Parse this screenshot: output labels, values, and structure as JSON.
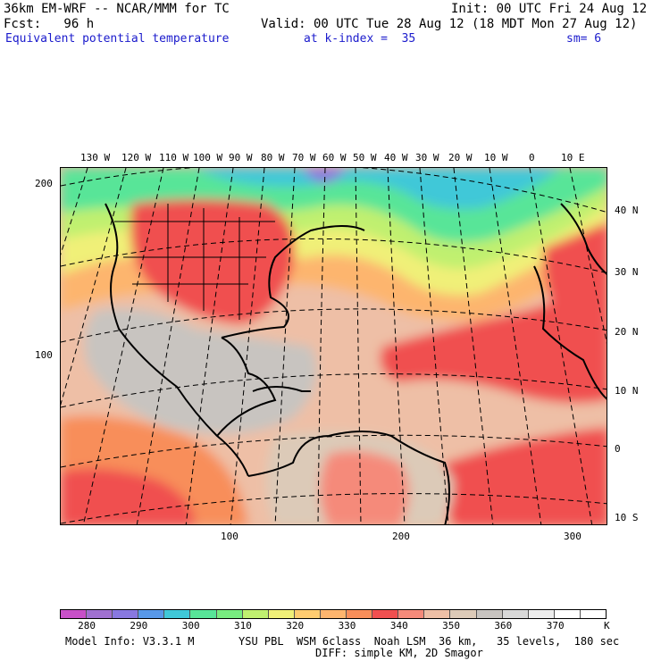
{
  "header": {
    "model_line": "36km EM-WRF -- NCAR/MMM for TC",
    "init_line": "Init: 00 UTC Fri 24 Aug 12",
    "fcst_line": "Fcst:   96 h",
    "valid_line": "Valid: 00 UTC Tue 28 Aug 12 (18 MDT Mon 27 Aug 12)",
    "field_line": "Equivalent potential temperature",
    "level_line": "at k-index =  35",
    "smooth_line": "sm= 6"
  },
  "map": {
    "lon_labels": [
      "130 W",
      "120 W",
      "110 W",
      "100 W",
      "90 W",
      "80 W",
      "70 W",
      "60 W",
      "50 W",
      "40 W",
      "30 W",
      "20 W",
      "10 W",
      "0",
      "10 E"
    ],
    "lat_labels": [
      "40 N",
      "30 N",
      "20 N",
      "10 N",
      "0",
      "10 S"
    ],
    "left_grid_labels": [
      "200",
      "100"
    ],
    "bottom_grid_labels": [
      "100",
      "200",
      "300"
    ],
    "colors": {
      "ocean_warm": "#eebfa6",
      "land_hot": "#f05050",
      "cool_green": "#58e598",
      "gray": "#c8c4c0"
    }
  },
  "colorbar": {
    "colors": [
      "#c850c8",
      "#a070d0",
      "#8878e0",
      "#5898e8",
      "#40c8d8",
      "#58e598",
      "#78ec80",
      "#c0f070",
      "#f0f078",
      "#ffcc70",
      "#fdb56e",
      "#f88e5a",
      "#f05050",
      "#f58a7a",
      "#eebfa6",
      "#dccab8",
      "#c8c4c0",
      "#d8d8d8",
      "#ececec",
      "#ffffff",
      "#ffffff"
    ],
    "tick_labels": [
      "280",
      "290",
      "300",
      "310",
      "320",
      "330",
      "340",
      "350",
      "360",
      "370"
    ],
    "unit": "K"
  },
  "footer": {
    "info_line1_left": "Model Info: V3.3.1 M",
    "info_line1_right": "YSU PBL  WSM 6class  Noah LSM  36 km,   35 levels,  180 sec",
    "info_line2": "DIFF: simple KM, 2D Smagor"
  }
}
